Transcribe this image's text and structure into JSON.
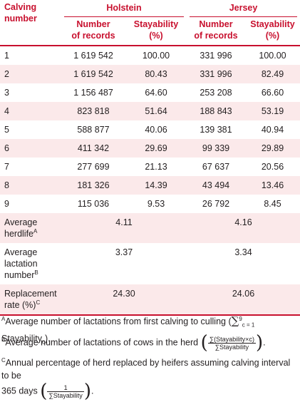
{
  "header": {
    "calving_line1": "Calving",
    "calving_line2": "number",
    "groups": [
      "Holstein",
      "Jersey"
    ],
    "sub_records_line1": "Number",
    "sub_records_line2": "of records",
    "sub_stay_line1": "Stayability",
    "sub_stay_line2": "(%)"
  },
  "rows": [
    {
      "n": "1",
      "h_rec": "1 619 542",
      "h_stay": "100.00",
      "j_rec": "331 996",
      "j_stay": "100.00"
    },
    {
      "n": "2",
      "h_rec": "1 619 542",
      "h_stay": "80.43",
      "j_rec": "331 996",
      "j_stay": "82.49"
    },
    {
      "n": "3",
      "h_rec": "1 156 487",
      "h_stay": "64.60",
      "j_rec": "253 208",
      "j_stay": "66.60"
    },
    {
      "n": "4",
      "h_rec": "823 818",
      "h_stay": "51.64",
      "j_rec": "188 843",
      "j_stay": "53.19"
    },
    {
      "n": "5",
      "h_rec": "588 877",
      "h_stay": "40.06",
      "j_rec": "139 381",
      "j_stay": "40.94"
    },
    {
      "n": "6",
      "h_rec": "411 342",
      "h_stay": "29.69",
      "j_rec": "99 339",
      "j_stay": "29.89"
    },
    {
      "n": "7",
      "h_rec": "277 699",
      "h_stay": "21.13",
      "j_rec": "67 637",
      "j_stay": "20.56"
    },
    {
      "n": "8",
      "h_rec": "181 326",
      "h_stay": "14.39",
      "j_rec": "43 494",
      "j_stay": "13.46"
    },
    {
      "n": "9",
      "h_rec": "115 036",
      "h_stay": "9.53",
      "j_rec": "26 792",
      "j_stay": "8.45"
    }
  ],
  "stats": {
    "herdlife": {
      "label1": "Average",
      "label2": "herdlife",
      "sup": "A",
      "holstein": "4.11",
      "jersey": "4.16"
    },
    "lactation": {
      "label1": "Average",
      "label2": "lactation",
      "label3": "number",
      "sup": "B",
      "holstein": "3.37",
      "jersey": "3.34"
    },
    "replacement": {
      "label1": "Replacement",
      "label2": "rate (%)",
      "sup": "C",
      "holstein": "24.30",
      "jersey": "24.06"
    }
  },
  "footnotes": {
    "a": {
      "mark": "A",
      "text": "Average number of lactations from first calving to culling (",
      "sum": "∑",
      "sup": "9",
      "sub": "c = 1",
      "term": " Stayability",
      "term_sub": "c",
      "close": ")."
    },
    "b": {
      "mark": "B",
      "text": "Average number of lactations of cows in the herd",
      "num": "∑(Stayability×c)",
      "den": "∑Stayability",
      "close": "."
    },
    "c": {
      "mark": "C",
      "text1": "Annual percentage of herd replaced by heifers assuming calving interval to be",
      "text2": "365 days",
      "num": "1",
      "den": "∑Stayability",
      "close": "."
    }
  },
  "colors": {
    "accent": "#c8102e",
    "shade": "#fbe9ea"
  }
}
